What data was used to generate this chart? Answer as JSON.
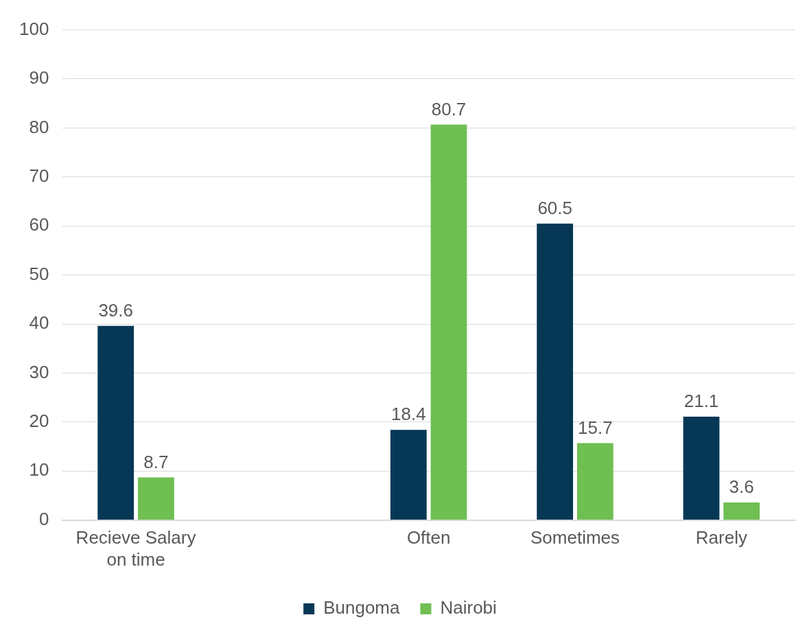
{
  "chart_data": {
    "type": "bar",
    "categories": [
      "Recieve Salary on time",
      null,
      "Often",
      "Sometimes",
      "Rarely"
    ],
    "series": [
      {
        "name": "Bungoma",
        "color": "#063856",
        "values": [
          39.6,
          null,
          18.4,
          60.5,
          21.1
        ]
      },
      {
        "name": "Nairobi",
        "color": "#6fbf53",
        "values": [
          8.7,
          null,
          80.7,
          15.7,
          3.6
        ]
      }
    ],
    "ylim": [
      0,
      100
    ],
    "yticks": [
      0,
      10,
      20,
      30,
      40,
      50,
      60,
      70,
      80,
      90,
      100
    ],
    "grid": "y",
    "legend": "bottom",
    "data_labels": true
  }
}
